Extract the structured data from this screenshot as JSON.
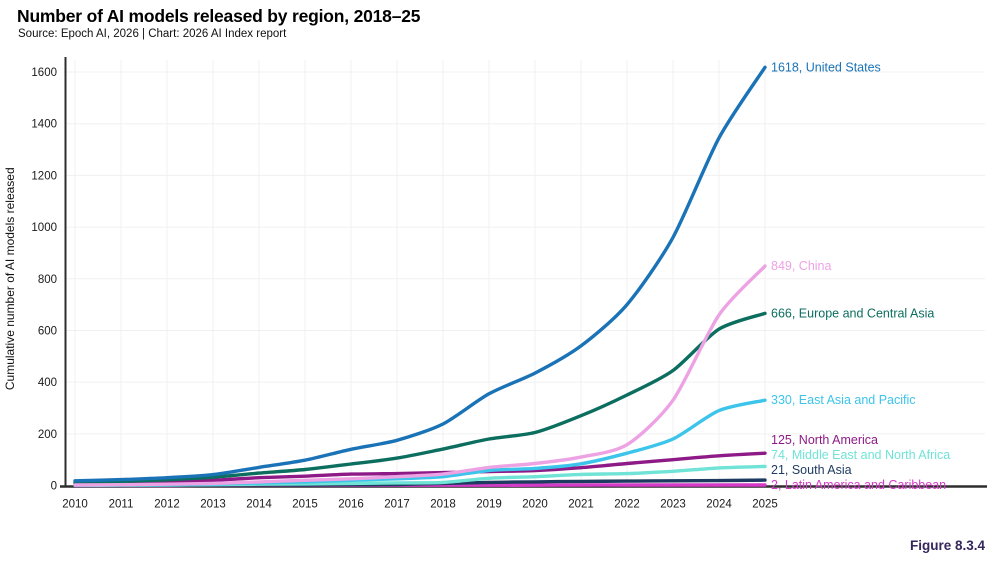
{
  "header": {
    "title": "Number of AI models released by region, 2018–25",
    "source": "Source: Epoch AI, 2026 | Chart: 2026 AI Index report"
  },
  "figure_label": "Figure 8.3.4",
  "chart_data": {
    "type": "line",
    "title": "Number of AI models released by region, 2018–25",
    "ylabel": "Cumulative number of AI models released",
    "xlabel": "",
    "x": [
      2010,
      2011,
      2012,
      2013,
      2014,
      2015,
      2016,
      2017,
      2018,
      2019,
      2020,
      2021,
      2022,
      2023,
      2024,
      2025
    ],
    "ylim": [
      0,
      1600
    ],
    "yticks": [
      0,
      200,
      400,
      600,
      800,
      1000,
      1200,
      1400,
      1600
    ],
    "grid": true,
    "legend_position": "line-end-labels-right",
    "axis_color": "#2e2e2e",
    "grid_color": "#f0f0f0",
    "tick_color": "#1a1a1a",
    "series": [
      {
        "name": "United States",
        "end_label": "1618, United States",
        "color": "#1a73b7",
        "values": [
          18,
          23,
          30,
          42,
          70,
          98,
          140,
          175,
          238,
          355,
          435,
          540,
          700,
          960,
          1345,
          1618
        ]
      },
      {
        "name": "China",
        "end_label": "849, China",
        "color": "#eda2e4",
        "values": [
          2,
          3,
          5,
          8,
          14,
          20,
          26,
          34,
          44,
          70,
          85,
          110,
          158,
          330,
          660,
          849
        ]
      },
      {
        "name": "Europe and Central Asia",
        "end_label": "666, Europe and Central Asia",
        "color": "#0c6e5f",
        "values": [
          12,
          16,
          22,
          32,
          48,
          62,
          83,
          106,
          141,
          180,
          205,
          270,
          350,
          445,
          605,
          666
        ]
      },
      {
        "name": "East Asia and Pacific",
        "end_label": "330, East Asia and Pacific",
        "color": "#3cc4ea",
        "values": [
          2,
          3,
          4,
          6,
          10,
          14,
          20,
          26,
          34,
          58,
          66,
          84,
          125,
          180,
          290,
          330
        ]
      },
      {
        "name": "North America",
        "end_label": "125, North America",
        "color": "#8e1a87",
        "values": [
          6,
          8,
          12,
          20,
          30,
          36,
          44,
          46,
          50,
          54,
          58,
          69,
          85,
          100,
          115,
          125
        ]
      },
      {
        "name": "Middle East and North Africa",
        "end_label": "74, Middle East and North Africa",
        "color": "#6fe3d6",
        "values": [
          1,
          1,
          2,
          3,
          5,
          6,
          8,
          10,
          12,
          28,
          34,
          43,
          46,
          55,
          68,
          74
        ]
      },
      {
        "name": "South Asia",
        "end_label": "21, South Asia",
        "color": "#1d3a5f",
        "values": [
          0,
          0,
          1,
          1,
          2,
          2,
          3,
          4,
          8,
          12,
          14,
          16,
          17,
          18,
          19,
          21
        ]
      },
      {
        "name": "Latin America and Caribbean",
        "end_label": "2, Latin America and Caribbean",
        "color": "#d43bc6",
        "values": [
          0,
          0,
          0,
          1,
          1,
          1,
          1,
          1,
          1,
          1,
          1,
          2,
          2,
          2,
          2,
          2
        ]
      }
    ]
  }
}
